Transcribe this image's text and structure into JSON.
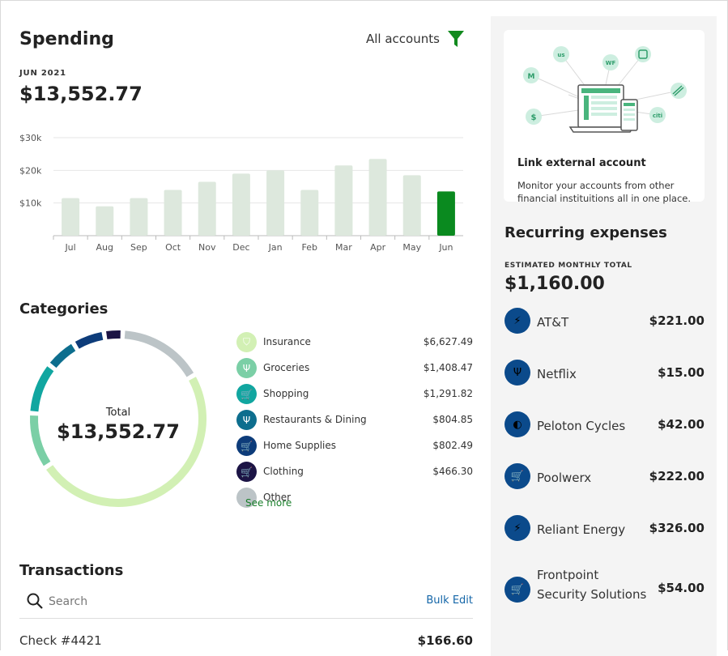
{
  "spending": {
    "title": "Spending",
    "accounts_label": "All accounts",
    "month_label": "JUN 2021",
    "total": "$13,552.77",
    "chart_data": {
      "type": "bar",
      "categories": [
        "Jul",
        "Aug",
        "Sep",
        "Oct",
        "Nov",
        "Dec",
        "Jan",
        "Feb",
        "Mar",
        "Apr",
        "May",
        "Jun"
      ],
      "values": [
        11500,
        9000,
        11500,
        14000,
        16500,
        19000,
        20000,
        14000,
        21500,
        23500,
        18500,
        13552.77
      ],
      "ylim": [
        0,
        30000
      ],
      "yticks": [
        10000,
        20000,
        30000
      ],
      "ytick_labels": [
        "$10k",
        "$20k",
        "$30k"
      ],
      "bar_color": "#dde8dd",
      "highlight_color": "#0a8a1f",
      "highlight_index": 11
    }
  },
  "categories": {
    "title": "Categories",
    "total_label": "Total",
    "total_value": "$13,552.77",
    "see_more": "See more",
    "items": [
      {
        "label": "Insurance",
        "amount": "$6,627.49",
        "value": 6627.49,
        "color": "#d2f0b4",
        "icon": "shield-icon",
        "glyph": "⛉"
      },
      {
        "label": "Groceries",
        "amount": "$1,408.47",
        "value": 1408.47,
        "color": "#7bcfa6",
        "icon": "utensils-icon",
        "glyph": "Ψ"
      },
      {
        "label": "Shopping",
        "amount": "$1,291.82",
        "value": 1291.82,
        "color": "#11a6a0",
        "icon": "cart-icon",
        "glyph": "🛒"
      },
      {
        "label": "Restaurants & Dining",
        "amount": "$804.85",
        "value": 804.85,
        "color": "#0d6e8e",
        "icon": "utensils-icon",
        "glyph": "Ψ"
      },
      {
        "label": "Home Supplies",
        "amount": "$802.49",
        "value": 802.49,
        "color": "#0d3c7a",
        "icon": "cart-icon",
        "glyph": "🛒"
      },
      {
        "label": "Clothing",
        "amount": "$466.30",
        "value": 466.3,
        "color": "#1c1445",
        "icon": "cart-icon",
        "glyph": "🛒"
      },
      {
        "label": "Other",
        "value": 2151.35,
        "color": "#bcc4c7"
      }
    ]
  },
  "transactions": {
    "title": "Transactions",
    "search_placeholder": "Search",
    "bulk_edit": "Bulk Edit",
    "rows": [
      {
        "name": "Check #4421",
        "amount": "$166.60"
      }
    ]
  },
  "link_card": {
    "title": "Link external account",
    "description": "Monitor your accounts from other financial instituitions all in one place.",
    "bank_badges": [
      "M",
      "us",
      "WF",
      "$",
      "citi"
    ]
  },
  "recurring": {
    "title": "Recurring expenses",
    "subtitle": "ESTIMATED MONTHLY TOTAL",
    "total": "$1,160.00",
    "items": [
      {
        "name": "AT&T",
        "amount": "$221.00",
        "icon": "plug-icon",
        "glyph": "⚡"
      },
      {
        "name": "Netflix",
        "amount": "$15.00",
        "icon": "utensils-icon",
        "glyph": "Ψ"
      },
      {
        "name": "Peloton Cycles",
        "amount": "$42.00",
        "icon": "clock-icon",
        "glyph": "◐"
      },
      {
        "name": "Poolwerx",
        "amount": "$222.00",
        "icon": "cart-icon",
        "glyph": "🛒"
      },
      {
        "name": "Reliant Energy",
        "amount": "$326.00",
        "icon": "plug-icon",
        "glyph": "⚡"
      },
      {
        "name": "Frontpoint Security Solutions",
        "name_line1": "Frontpoint",
        "name_line2": "Security Solutions",
        "amount": "$54.00",
        "icon": "cart-icon",
        "glyph": "🛒"
      }
    ]
  }
}
